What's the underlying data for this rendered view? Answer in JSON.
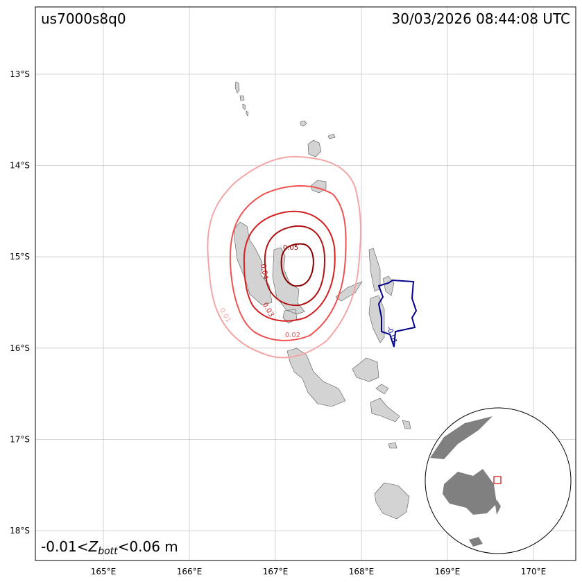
{
  "header": {
    "event_id": "us7000s8q0",
    "timestamp": "30/03/2026 08:44:08 UTC"
  },
  "axes": {
    "lat_labels": [
      "13°S",
      "14°S",
      "15°S",
      "16°S",
      "17°S",
      "18°S"
    ],
    "lon_labels": [
      "165°E",
      "166°E",
      "167°E",
      "168°E",
      "169°E",
      "170°E"
    ]
  },
  "contour_labels": [
    "0.05",
    "0.04",
    "0.03",
    "0.02",
    "0.01",
    "-0.01"
  ],
  "caption": {
    "prefix": "-0.01<",
    "symbol": "Z",
    "subscript": "bott",
    "suffix": "<0.06 m"
  }
}
